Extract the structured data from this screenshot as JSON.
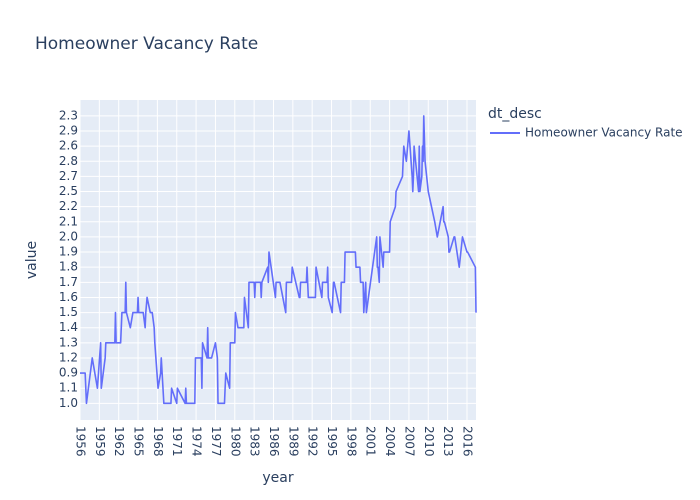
{
  "chart_data": {
    "type": "line",
    "title": "Homeowner Vacancy Rate",
    "x_label": "year",
    "y_label": "value",
    "legend_title": "dt_desc",
    "y_axis_type": "category",
    "grid": true,
    "legend_position": "right",
    "xlim": [
      1956,
      2017.4
    ],
    "xticks": [
      1956,
      1959,
      1962,
      1965,
      1968,
      1971,
      1974,
      1977,
      1980,
      1983,
      1986,
      1989,
      1992,
      1995,
      1998,
      2001,
      2004,
      2007,
      2010,
      2013,
      2016
    ],
    "yticks": [
      {
        "value": 1.0,
        "label": "1.0"
      },
      1.1,
      0.9,
      1.2,
      1.3,
      1.4,
      1.5,
      1.6,
      1.7,
      1.8,
      1.9,
      {
        "value": 2.0,
        "label": "2.0"
      },
      2.1,
      2.2,
      2.5,
      2.7,
      2.8,
      2.6,
      2.9,
      2.3
    ],
    "x": [
      1956.0,
      1956.8,
      1957.0,
      1957.9,
      1958.7,
      1959.2,
      1959.3,
      1959.9,
      1960.0,
      1961.4,
      1961.5,
      1961.6,
      1962.3,
      1962.4,
      1962.5,
      1963.0,
      1963.1,
      1963.2,
      1963.8,
      1964.2,
      1964.9,
      1965.0,
      1965.1,
      1965.8,
      1966.1,
      1966.2,
      1966.4,
      1966.9,
      1967.2,
      1967.5,
      1967.6,
      1968.1,
      1968.5,
      1968.6,
      1969.0,
      1970.1,
      1970.2,
      1971.0,
      1971.1,
      1972.3,
      1972.4,
      1972.5,
      1973.8,
      1973.9,
      1974.8,
      1974.9,
      1975.0,
      1975.7,
      1975.8,
      1975.9,
      1976.4,
      1977.0,
      1977.3,
      1977.4,
      1978.4,
      1978.5,
      1978.6,
      1979.2,
      1979.3,
      1980.0,
      1980.1,
      1980.5,
      1981.4,
      1981.5,
      1982.1,
      1982.2,
      1983.0,
      1983.1,
      1983.2,
      1984.0,
      1984.1,
      1984.2,
      1985.1,
      1985.2,
      1985.3,
      1986.3,
      1986.4,
      1987.0,
      1987.9,
      1988.0,
      1988.8,
      1988.9,
      1990.0,
      1990.1,
      1990.2,
      1991.1,
      1991.2,
      1991.4,
      1992.5,
      1992.6,
      1993.5,
      1993.6,
      1994.3,
      1994.4,
      1994.5,
      1995.1,
      1995.2,
      1995.3,
      1995.4,
      1996.4,
      1996.5,
      1997.0,
      1997.1,
      1998.7,
      1998.8,
      1999.4,
      1999.5,
      1999.9,
      2000.0,
      2000.3,
      2000.4,
      2002.0,
      2002.1,
      2002.2,
      2002.4,
      2002.5,
      2003.0,
      2003.1,
      2003.2,
      2004.0,
      2004.1,
      2004.9,
      2005.0,
      2006.0,
      2006.1,
      2006.2,
      2006.6,
      2007.0,
      2007.5,
      2007.6,
      2007.7,
      2007.8,
      2008.5,
      2008.6,
      2008.7,
      2009.0,
      2009.1,
      2009.2,
      2009.3,
      2009.5,
      2010.0,
      2010.5,
      2011.0,
      2011.4,
      2012.3,
      2012.4,
      2012.5,
      2013.1,
      2013.2,
      2013.3,
      2014.0,
      2014.1,
      2014.8,
      2015.3,
      2016.0,
      2016.1,
      2017.3,
      2017.4
    ],
    "series": [
      {
        "name": "Homeowner Vacancy Rate",
        "color": "#636efa",
        "values": [
          0.9,
          0.9,
          1.0,
          1.2,
          1.1,
          1.3,
          1.1,
          1.2,
          1.3,
          1.3,
          1.5,
          1.3,
          1.3,
          1.4,
          1.5,
          1.5,
          1.7,
          1.5,
          1.4,
          1.5,
          1.5,
          1.6,
          1.5,
          1.5,
          1.4,
          1.5,
          1.6,
          1.5,
          1.5,
          1.4,
          1.3,
          1.1,
          0.9,
          1.2,
          1.0,
          1.0,
          1.1,
          1.0,
          1.1,
          1.0,
          1.1,
          1.0,
          1.0,
          1.2,
          1.2,
          1.1,
          1.3,
          1.2,
          1.4,
          1.2,
          1.2,
          1.3,
          1.2,
          1.0,
          1.0,
          1.1,
          0.9,
          1.1,
          1.3,
          1.3,
          1.5,
          1.4,
          1.4,
          1.6,
          1.4,
          1.7,
          1.7,
          1.6,
          1.7,
          1.7,
          1.6,
          1.7,
          1.8,
          1.7,
          1.9,
          1.6,
          1.7,
          1.7,
          1.5,
          1.7,
          1.7,
          1.8,
          1.6,
          1.6,
          1.7,
          1.7,
          1.8,
          1.6,
          1.6,
          1.8,
          1.6,
          1.7,
          1.7,
          1.8,
          1.6,
          1.5,
          1.6,
          1.7,
          1.7,
          1.5,
          1.7,
          1.7,
          1.9,
          1.9,
          1.8,
          1.8,
          1.7,
          1.7,
          1.5,
          1.7,
          1.5,
          2.0,
          1.8,
          1.8,
          1.7,
          2.0,
          1.8,
          1.9,
          1.9,
          1.9,
          2.1,
          2.2,
          2.5,
          2.7,
          2.8,
          2.6,
          2.8,
          2.9,
          2.7,
          2.5,
          2.7,
          2.6,
          2.5,
          2.6,
          2.5,
          2.7,
          2.6,
          2.8,
          2.3,
          2.8,
          2.5,
          2.2,
          2.1,
          2.0,
          2.2,
          2.1,
          2.1,
          2.0,
          1.9,
          1.9,
          2.0,
          2.0,
          1.8,
          2.0,
          1.9,
          1.9,
          1.8,
          1.5
        ]
      }
    ]
  }
}
